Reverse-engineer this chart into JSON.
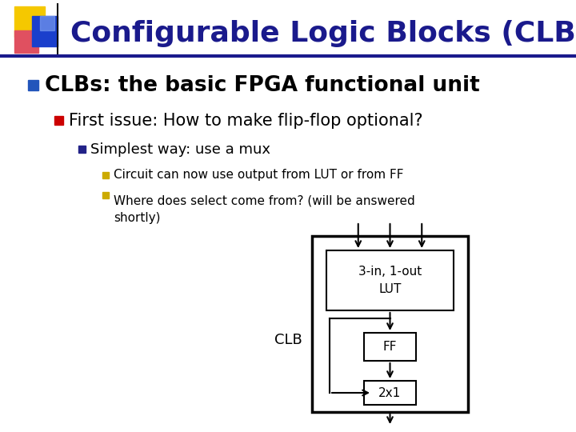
{
  "background_color": "#ffffff",
  "title": "Configurable Logic Blocks (CLBs)",
  "title_color": "#1a1a8c",
  "title_fontsize": 26,
  "slide_line_color": "#1a1a8c",
  "bullet1": "CLBs: the basic FPGA functional unit",
  "bullet1_color": "#000000",
  "bullet1_fontsize": 19,
  "bullet1_marker_color": "#2255bb",
  "bullet2": "First issue: How to make flip-flop optional?",
  "bullet2_color": "#000000",
  "bullet2_fontsize": 15,
  "bullet2_marker_color": "#cc0000",
  "bullet3": "Simplest way: use a mux",
  "bullet3_color": "#000000",
  "bullet3_fontsize": 13,
  "bullet3_marker_color": "#222288",
  "bullet4a": "Circuit can now use output from LUT or from FF",
  "bullet4b": "Where does select come from? (will be answered\nshortly)",
  "bullet4_color": "#000000",
  "bullet4_fontsize": 11,
  "bullet4_marker_color": "#ccaa00",
  "clb_label": "CLB",
  "lut_label": "3-in, 1-out\nLUT",
  "ff_label": "FF",
  "mux_label": "2x1",
  "icon_yellow": "#f5c800",
  "icon_red": "#e05060",
  "icon_blue": "#1a3fcc",
  "icon_blue2": "#7799ee"
}
